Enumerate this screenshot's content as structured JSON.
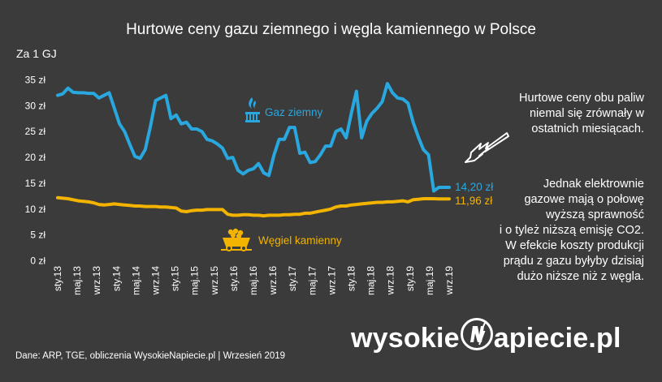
{
  "title": "Hurtowe ceny gazu ziemnego i węgla kamiennego w Polsce",
  "unit_label": "Za 1 GJ",
  "note_top": "Hurtowe ceny obu paliw\nniemal się zrównały w\nostatnich miesiącach.",
  "note_bottom": "Jednak elektrownie\ngazowe mają o połowę\nwyższą sprawność\ni o tyleż niższą emisję CO2.\nW efekcie koszty produkcji\nprądu z gazu byłyby dzisiaj\ndużo niższe niż z węgla.",
  "source": "Dane: ARP, TGE, obliczenia WysokieNapiecie.pl   |  Wrzesień 2019",
  "brand": {
    "part1": "wysokie",
    "part2": "apiecie.pl"
  },
  "icons": [
    "gas-flame-icon",
    "coal-cart-icon",
    "arrow-icon",
    "lightning-n-icon"
  ],
  "colors": {
    "gas": "#29a8e0",
    "coal": "#f2b400",
    "background": "#3b3b3b",
    "text": "#ffffff"
  },
  "chart_data": {
    "type": "line",
    "ylabel": "Za 1 GJ",
    "ylim": [
      0,
      35
    ],
    "yticks": [
      "0 zł",
      "5 zł",
      "10 zł",
      "15 zł",
      "20 zł",
      "25 zł",
      "30 zł",
      "35 zł"
    ],
    "ytick_values": [
      0,
      5,
      10,
      15,
      20,
      25,
      30,
      35
    ],
    "xticks": [
      "sty.13",
      "maj.13",
      "wrz.13",
      "sty.14",
      "maj.14",
      "wrz.14",
      "sty.15",
      "maj.15",
      "wrz.15",
      "sty.16",
      "maj.16",
      "wrz.16",
      "sty.17",
      "maj.17",
      "wrz.17",
      "sty.18",
      "maj.18",
      "wrz.18",
      "sty.19",
      "maj.19",
      "wrz.19"
    ],
    "grid": false,
    "series": [
      {
        "name": "Gaz ziemny",
        "color": "#29a8e0",
        "end_label": "14,20 zł",
        "values": [
          32.0,
          32.3,
          33.4,
          32.6,
          32.5,
          32.5,
          32.4,
          32.4,
          31.5,
          32.0,
          32.5,
          29.5,
          26.5,
          25.0,
          22.5,
          20.2,
          19.8,
          21.5,
          26.0,
          31.0,
          31.5,
          32.0,
          27.5,
          28.2,
          26.5,
          26.8,
          25.5,
          25.5,
          25.0,
          23.5,
          23.2,
          22.6,
          21.8,
          19.8,
          20.0,
          17.5,
          16.8,
          17.5,
          17.8,
          18.8,
          17.0,
          16.5,
          20.5,
          23.5,
          23.5,
          25.8,
          25.8,
          20.8,
          21.0,
          19.0,
          19.2,
          20.5,
          22.2,
          22.2,
          25.0,
          25.5,
          23.8,
          28.5,
          32.8,
          23.8,
          27.0,
          28.5,
          29.5,
          30.8,
          34.3,
          32.5,
          31.5,
          31.3,
          30.5,
          26.8,
          24.0,
          21.5,
          20.5,
          13.5,
          14.2,
          14.2,
          14.2
        ],
        "x_start": "sty.13"
      },
      {
        "name": "Węgiel kamienny",
        "color": "#f2b400",
        "end_label": "11,96 zł",
        "values": [
          12.2,
          12.1,
          12.0,
          11.8,
          11.6,
          11.5,
          11.4,
          11.2,
          10.9,
          10.8,
          10.9,
          11.0,
          10.9,
          10.8,
          10.7,
          10.6,
          10.6,
          10.5,
          10.5,
          10.5,
          10.4,
          10.4,
          10.3,
          10.2,
          9.6,
          9.5,
          9.7,
          9.8,
          9.8,
          9.9,
          9.9,
          9.9,
          9.9,
          9.0,
          8.8,
          8.8,
          8.9,
          8.9,
          8.8,
          8.8,
          8.7,
          8.8,
          8.8,
          8.8,
          8.9,
          8.9,
          9.0,
          9.0,
          9.2,
          9.2,
          9.4,
          9.6,
          9.8,
          10.0,
          10.4,
          10.6,
          10.6,
          10.8,
          10.9,
          11.0,
          11.1,
          11.2,
          11.3,
          11.3,
          11.4,
          11.4,
          11.5,
          11.6,
          11.4,
          11.8,
          11.9,
          12.0,
          12.0,
          12.0,
          11.96,
          11.96,
          11.96
        ],
        "x_start": "sty.13"
      }
    ]
  }
}
